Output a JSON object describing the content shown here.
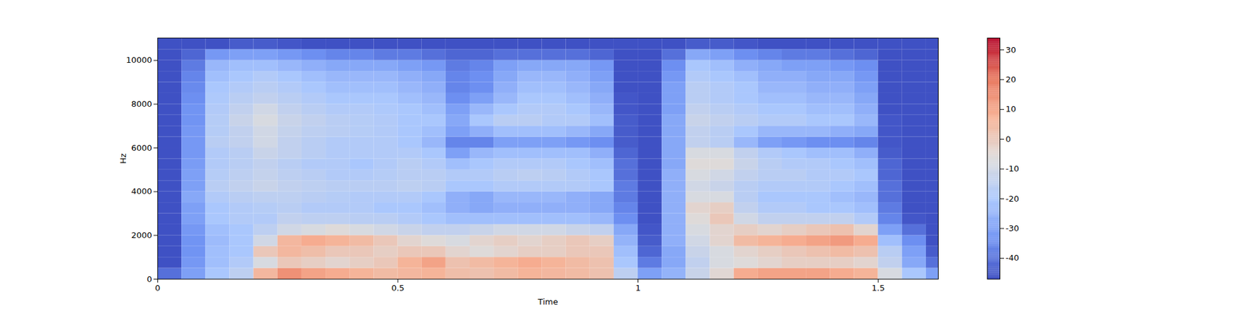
{
  "chart_data": {
    "type": "heatmap",
    "xlabel": "Time",
    "ylabel": "Hz",
    "xlim": [
      0,
      1.625
    ],
    "ylim": [
      0,
      11025
    ],
    "xticks": [
      0,
      0.5,
      1,
      1.5
    ],
    "yticks": [
      0,
      2000,
      4000,
      6000,
      8000,
      10000
    ],
    "x_bins": [
      0,
      0.05,
      0.1,
      0.15,
      0.2,
      0.25,
      0.3,
      0.35,
      0.4,
      0.45,
      0.5,
      0.55,
      0.6,
      0.65,
      0.7,
      0.75,
      0.8,
      0.85,
      0.9,
      0.95,
      1.0,
      1.05,
      1.1,
      1.15,
      1.2,
      1.25,
      1.3,
      1.35,
      1.4,
      1.45,
      1.5,
      1.55,
      1.6,
      1.625
    ],
    "y_bins": [
      0,
      500,
      1000,
      1500,
      2000,
      2500,
      3000,
      3500,
      4000,
      4500,
      5000,
      5500,
      6000,
      6500,
      7000,
      7500,
      8000,
      8500,
      9000,
      9500,
      10000,
      10500,
      11025
    ],
    "cells": [
      [
        -40,
        -46,
        -46,
        -46,
        -46,
        -46,
        -46,
        -46,
        -46,
        -46,
        -46,
        -46,
        -46,
        -46,
        -46,
        -46,
        -46,
        -46,
        -46,
        -46,
        -46,
        -46
      ],
      [
        -30,
        -32,
        -33,
        -33,
        -32,
        -30,
        -30,
        -28,
        -30,
        -30,
        -31,
        -32,
        -32,
        -32,
        -33,
        -33,
        -34,
        -35,
        -36,
        -38,
        -42,
        -46
      ],
      [
        -20,
        -22,
        -22,
        -23,
        -22,
        -20,
        -20,
        -18,
        -16,
        -17,
        -18,
        -18,
        -16,
        -17,
        -17,
        -18,
        -19,
        -20,
        -22,
        -24,
        -32,
        -46
      ],
      [
        -15,
        -18,
        -20,
        -20,
        -20,
        -18,
        -18,
        -16,
        -14,
        -15,
        -16,
        -16,
        -14,
        -14,
        -12,
        -14,
        -16,
        -18,
        -20,
        -22,
        -30,
        -44
      ],
      [
        5,
        -8,
        0,
        -10,
        -15,
        -18,
        -17,
        -15,
        -12,
        -13,
        -14,
        -12,
        -10,
        -10,
        -8,
        -10,
        -14,
        -16,
        -18,
        -22,
        -30,
        -44
      ],
      [
        14,
        0,
        5,
        5,
        -10,
        -14,
        -16,
        -15,
        -14,
        -15,
        -16,
        -14,
        -14,
        -13,
        -12,
        -14,
        -16,
        -18,
        -20,
        -24,
        -32,
        -45
      ],
      [
        10,
        -2,
        3,
        8,
        -8,
        -15,
        -18,
        -16,
        -15,
        -16,
        -18,
        -16,
        -16,
        -15,
        -14,
        -16,
        -18,
        -20,
        -22,
        -26,
        -34,
        -46
      ],
      [
        8,
        -4,
        0,
        6,
        -6,
        -15,
        -18,
        -17,
        -16,
        -18,
        -18,
        -18,
        -18,
        -16,
        -16,
        -18,
        -20,
        -22,
        -24,
        -28,
        -36,
        -46
      ],
      [
        6,
        -2,
        0,
        4,
        -8,
        -16,
        -18,
        -18,
        -16,
        -18,
        -20,
        -18,
        -18,
        -17,
        -17,
        -18,
        -20,
        -22,
        -24,
        -28,
        -36,
        -46
      ],
      [
        4,
        0,
        -2,
        0,
        -10,
        -16,
        -20,
        -18,
        -16,
        -17,
        -18,
        -18,
        -18,
        -18,
        -18,
        -19,
        -20,
        -22,
        -24,
        -28,
        -38,
        -46
      ],
      [
        5,
        6,
        0,
        -4,
        -12,
        -18,
        -20,
        -18,
        -15,
        -16,
        -16,
        -18,
        -20,
        -20,
        -20,
        -20,
        -22,
        -24,
        -26,
        -30,
        -38,
        -46
      ],
      [
        6,
        10,
        0,
        -6,
        -14,
        -20,
        -22,
        -20,
        -16,
        -16,
        -18,
        -20,
        -24,
        -22,
        -20,
        -22,
        -24,
        -26,
        -28,
        -32,
        -40,
        -46
      ],
      [
        3,
        2,
        -4,
        -8,
        -14,
        -22,
        -26,
        -26,
        -20,
        -18,
        -22,
        -30,
        -36,
        -30,
        -28,
        -30,
        -34,
        -36,
        -36,
        -38,
        -42,
        -46
      ],
      [
        2,
        4,
        -6,
        -4,
        -12,
        -22,
        -28,
        -28,
        -20,
        -18,
        -20,
        -24,
        -36,
        -26,
        -20,
        -24,
        -30,
        -34,
        -34,
        -36,
        -42,
        -46
      ],
      [
        4,
        6,
        -4,
        -2,
        -10,
        -22,
        -26,
        -24,
        -18,
        -16,
        -18,
        -22,
        -30,
        -22,
        -16,
        -20,
        -24,
        -26,
        -28,
        -30,
        -40,
        -46
      ],
      [
        6,
        8,
        -2,
        -4,
        -10,
        -22,
        -26,
        -24,
        -18,
        -15,
        -18,
        -22,
        -30,
        -22,
        -16,
        -18,
        -20,
        -22,
        -24,
        -28,
        -40,
        -46
      ],
      [
        5,
        6,
        -2,
        -2,
        -10,
        -22,
        -26,
        -24,
        -18,
        -16,
        -18,
        -22,
        -30,
        -22,
        -18,
        -18,
        -20,
        -22,
        -24,
        -28,
        -40,
        -46
      ],
      [
        4,
        4,
        0,
        0,
        -12,
        -22,
        -26,
        -26,
        -18,
        -18,
        -20,
        -22,
        -32,
        -24,
        -18,
        -20,
        -22,
        -24,
        -26,
        -28,
        -40,
        -46
      ],
      [
        2,
        2,
        0,
        -2,
        -14,
        -24,
        -28,
        -28,
        -20,
        -20,
        -22,
        -26,
        -34,
        -28,
        -22,
        -24,
        -26,
        -28,
        -30,
        -32,
        -42,
        -46
      ],
      [
        -15,
        -20,
        -22,
        -25,
        -28,
        -34,
        -36,
        -38,
        -38,
        -40,
        -40,
        -42,
        -44,
        -44,
        -44,
        -45,
        -45,
        -46,
        -46,
        -46,
        -46,
        -46
      ],
      [
        -30,
        -38,
        -42,
        -44,
        -45,
        -46,
        -46,
        -46,
        -46,
        -46,
        -46,
        -46,
        -46,
        -46,
        -46,
        -46,
        -46,
        -46,
        -46,
        -46,
        -46,
        -46
      ],
      [
        -25,
        -28,
        -28,
        -26,
        -26,
        -26,
        -26,
        -26,
        -26,
        -26,
        -28,
        -28,
        -28,
        -28,
        -28,
        -30,
        -30,
        -30,
        -32,
        -34,
        -40,
        -46
      ],
      [
        -12,
        -14,
        -12,
        -10,
        -8,
        -6,
        -4,
        -8,
        -10,
        -8,
        -6,
        -8,
        -14,
        -14,
        -12,
        -14,
        -16,
        -16,
        -18,
        -20,
        -28,
        -44
      ],
      [
        -5,
        -8,
        -8,
        -4,
        -4,
        0,
        -2,
        -8,
        -12,
        -10,
        -6,
        -8,
        -16,
        -16,
        -14,
        -16,
        -18,
        -18,
        -20,
        -22,
        -30,
        -44
      ],
      [
        8,
        -6,
        -4,
        4,
        -2,
        -10,
        -14,
        -16,
        -16,
        -14,
        -12,
        -14,
        -24,
        -20,
        -16,
        -18,
        -20,
        -20,
        -22,
        -26,
        -34,
        -45
      ],
      [
        10,
        -4,
        -2,
        6,
        -4,
        -14,
        -18,
        -20,
        -18,
        -16,
        -16,
        -18,
        -30,
        -24,
        -18,
        -20,
        -22,
        -24,
        -26,
        -28,
        -36,
        -46
      ],
      [
        10,
        -2,
        0,
        8,
        -2,
        -14,
        -18,
        -20,
        -18,
        -16,
        -18,
        -20,
        -32,
        -24,
        -18,
        -20,
        -22,
        -24,
        -26,
        -30,
        -38,
        -46
      ],
      [
        10,
        -2,
        2,
        10,
        0,
        -14,
        -20,
        -20,
        -18,
        -18,
        -18,
        -22,
        -34,
        -24,
        -20,
        -22,
        -24,
        -26,
        -28,
        -30,
        -38,
        -46
      ],
      [
        8,
        -2,
        4,
        12,
        2,
        -14,
        -20,
        -22,
        -20,
        -18,
        -20,
        -22,
        -34,
        -26,
        -20,
        -22,
        -24,
        -26,
        -28,
        -32,
        -40,
        -46
      ],
      [
        6,
        -4,
        2,
        8,
        -4,
        -18,
        -22,
        -24,
        -22,
        -20,
        -22,
        -26,
        -36,
        -28,
        -24,
        -26,
        -28,
        -30,
        -32,
        -34,
        -42,
        -46
      ],
      [
        -8,
        -14,
        -16,
        -22,
        -30,
        -36,
        -38,
        -40,
        -40,
        -42,
        -42,
        -44,
        -45,
        -45,
        -45,
        -46,
        -46,
        -46,
        -46,
        -46,
        -46,
        -46
      ],
      [
        -20,
        -28,
        -30,
        -34,
        -40,
        -45,
        -46,
        -46,
        -46,
        -46,
        -46,
        -46,
        -46,
        -46,
        -46,
        -46,
        -46,
        -46,
        -46,
        -46,
        -46,
        -46
      ],
      [
        -30,
        -40,
        -44,
        -46,
        -46,
        -46,
        -46,
        -46,
        -46,
        -46,
        -46,
        -46,
        -46,
        -46,
        -46,
        -46,
        -46,
        -46,
        -46,
        -46,
        -46,
        -46
      ]
    ],
    "colorbar_range": [
      -47,
      34
    ],
    "colorbar_ticks": [
      -40,
      -30,
      -20,
      -10,
      0,
      10,
      20,
      30
    ]
  }
}
